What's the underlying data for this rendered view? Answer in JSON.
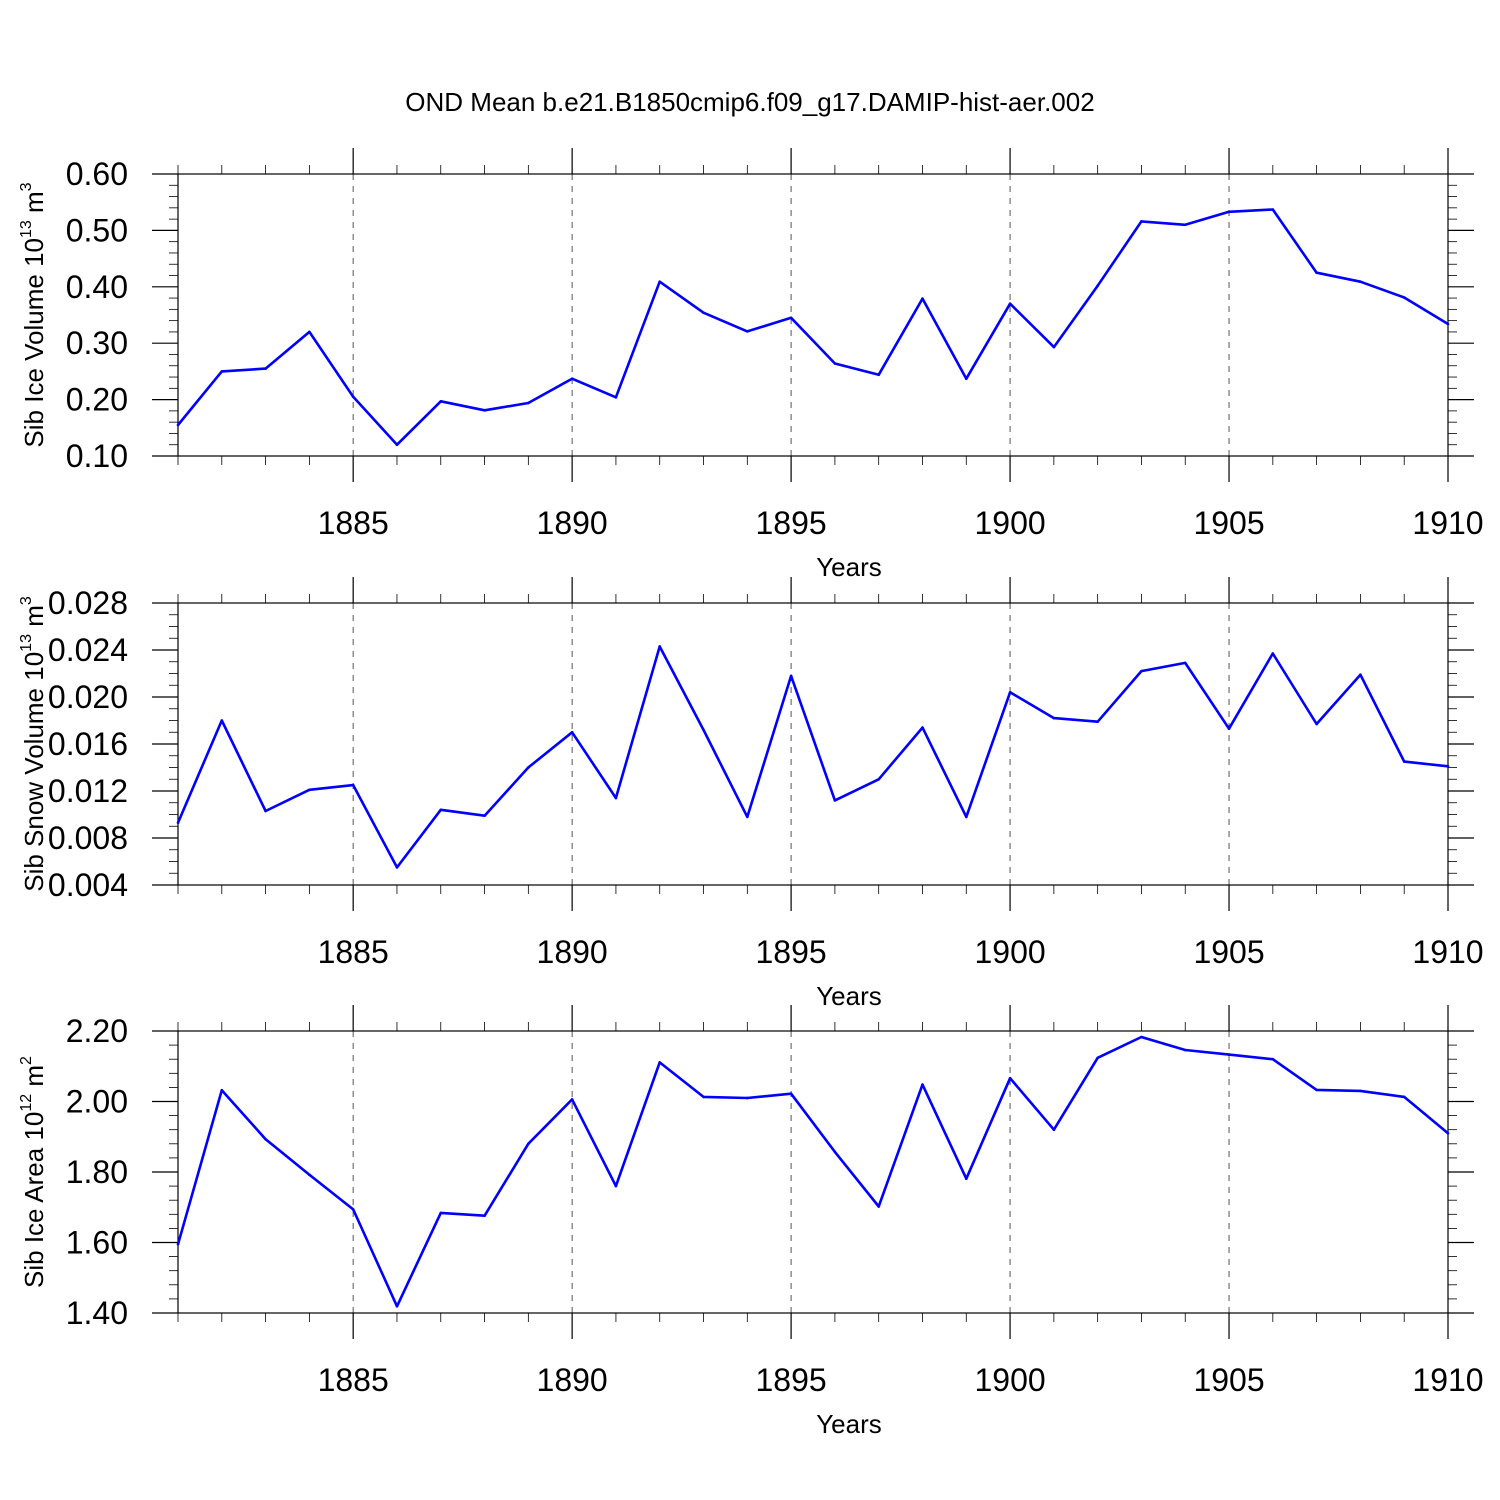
{
  "figure_title": "OND Mean b.e21.B1850cmip6.f09_g17.DAMIP-hist-aer.002",
  "colors": {
    "series": "#0000ff",
    "axis": "#000000",
    "grid": "#555555"
  },
  "chart_data": [
    {
      "type": "line",
      "title": "OND Mean b.e21.B1850cmip6.f09_g17.DAMIP-hist-aer.002",
      "xlabel": "Years",
      "ylabel_main": "Sib Ice Volume 10",
      "ylabel_exp": "13",
      "ylabel_unit": " m",
      "ylabel_unit_exp": "3",
      "xlim": [
        1881,
        1910
      ],
      "ylim": [
        0.1,
        0.6
      ],
      "yticks": [
        0.1,
        0.2,
        0.3,
        0.4,
        0.5,
        0.6
      ],
      "ytick_labels": [
        "0.10",
        "0.20",
        "0.30",
        "0.40",
        "0.50",
        "0.60"
      ],
      "yminor_step": 0.02,
      "xticks": [
        1885,
        1890,
        1895,
        1900,
        1905,
        1910
      ],
      "xtick_labels": [
        "1885",
        "1890",
        "1895",
        "1900",
        "1905",
        "1910"
      ],
      "grid_x": true,
      "series": [
        {
          "name": "Sib Ice Volume",
          "x": [
            1881,
            1882,
            1883,
            1884,
            1885,
            1886,
            1887,
            1888,
            1889,
            1890,
            1891,
            1892,
            1893,
            1894,
            1895,
            1896,
            1897,
            1898,
            1899,
            1900,
            1901,
            1902,
            1903,
            1904,
            1905,
            1906,
            1907,
            1908,
            1909,
            1910
          ],
          "values": [
            0.155,
            0.25,
            0.255,
            0.32,
            0.205,
            0.12,
            0.197,
            0.181,
            0.194,
            0.237,
            0.204,
            0.409,
            0.354,
            0.321,
            0.345,
            0.264,
            0.244,
            0.379,
            0.237,
            0.37,
            0.293,
            0.402,
            0.516,
            0.51,
            0.533,
            0.537,
            0.425,
            0.409,
            0.381,
            0.334
          ]
        }
      ]
    },
    {
      "type": "line",
      "title": "",
      "xlabel": "Years",
      "ylabel_main": "Sib Snow Volume 10",
      "ylabel_exp": "13",
      "ylabel_unit": " m",
      "ylabel_unit_exp": "3",
      "xlim": [
        1881,
        1910
      ],
      "ylim": [
        0.004,
        0.028
      ],
      "yticks": [
        0.004,
        0.008,
        0.012,
        0.016,
        0.02,
        0.024,
        0.028
      ],
      "ytick_labels": [
        "0.004",
        "0.008",
        "0.012",
        "0.016",
        "0.020",
        "0.024",
        "0.028"
      ],
      "yminor_step": 0.001,
      "xticks": [
        1885,
        1890,
        1895,
        1900,
        1905,
        1910
      ],
      "xtick_labels": [
        "1885",
        "1890",
        "1895",
        "1900",
        "1905",
        "1910"
      ],
      "grid_x": true,
      "series": [
        {
          "name": "Sib Snow Volume",
          "x": [
            1881,
            1882,
            1883,
            1884,
            1885,
            1886,
            1887,
            1888,
            1889,
            1890,
            1891,
            1892,
            1893,
            1894,
            1895,
            1896,
            1897,
            1898,
            1899,
            1900,
            1901,
            1902,
            1903,
            1904,
            1905,
            1906,
            1907,
            1908,
            1909,
            1910
          ],
          "values": [
            0.0093,
            0.018,
            0.0103,
            0.0121,
            0.0125,
            0.0055,
            0.0104,
            0.0099,
            0.014,
            0.017,
            0.0114,
            0.0243,
            0.0172,
            0.0098,
            0.0218,
            0.0112,
            0.013,
            0.0174,
            0.0098,
            0.0204,
            0.0182,
            0.0179,
            0.0222,
            0.0229,
            0.0173,
            0.0237,
            0.0177,
            0.0219,
            0.0145,
            0.0141
          ]
        }
      ]
    },
    {
      "type": "line",
      "title": "",
      "xlabel": "Years",
      "ylabel_main": "Sib Ice Area 10",
      "ylabel_exp": "12",
      "ylabel_unit": " m",
      "ylabel_unit_exp": "2",
      "xlim": [
        1881,
        1910
      ],
      "ylim": [
        1.4,
        2.2
      ],
      "yticks": [
        1.4,
        1.6,
        1.8,
        2.0,
        2.2
      ],
      "ytick_labels": [
        "1.40",
        "1.60",
        "1.80",
        "2.00",
        "2.20"
      ],
      "yminor_step": 0.04,
      "xticks": [
        1885,
        1890,
        1895,
        1900,
        1905,
        1910
      ],
      "xtick_labels": [
        "1885",
        "1890",
        "1895",
        "1900",
        "1905",
        "1910"
      ],
      "grid_x": true,
      "series": [
        {
          "name": "Sib Ice Area",
          "x": [
            1881,
            1882,
            1883,
            1884,
            1885,
            1886,
            1887,
            1888,
            1889,
            1890,
            1891,
            1892,
            1893,
            1894,
            1895,
            1896,
            1897,
            1898,
            1899,
            1900,
            1901,
            1902,
            1903,
            1904,
            1905,
            1906,
            1907,
            1908,
            1909,
            1910
          ],
          "values": [
            1.595,
            2.032,
            1.893,
            1.792,
            1.694,
            1.419,
            1.684,
            1.676,
            1.88,
            2.006,
            1.76,
            2.111,
            2.013,
            2.01,
            2.022,
            1.857,
            1.702,
            2.048,
            1.781,
            2.066,
            1.92,
            2.124,
            2.183,
            2.146,
            2.133,
            2.12,
            2.033,
            2.03,
            2.013,
            1.91
          ]
        }
      ]
    }
  ]
}
